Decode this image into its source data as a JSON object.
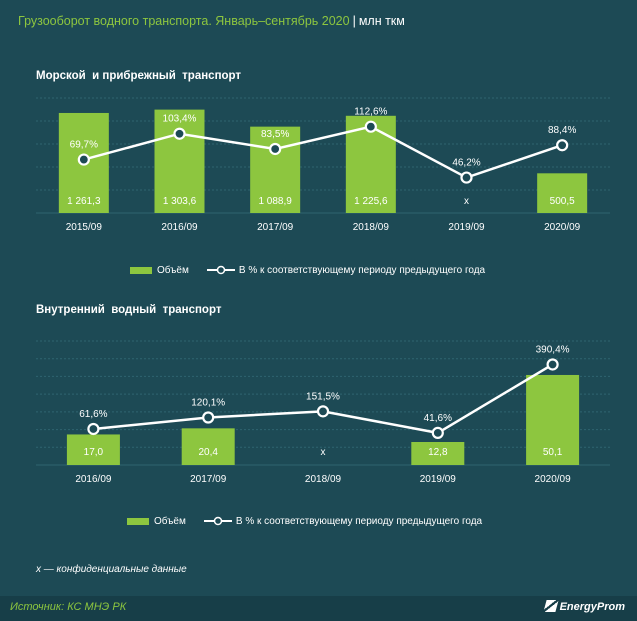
{
  "header": {
    "title": "Грузооборот водного транспорта. Январь–сентябрь 2020",
    "separator": "|",
    "unit": "млн ткм"
  },
  "legend": {
    "volume_label": "Объём",
    "percent_label": "В % к соответствующему периоду предыдущего года"
  },
  "footnote": "х — конфиденциальные данные",
  "source": "Источник: КС МНЭ РК",
  "brand": "EnergyProm",
  "colors": {
    "background": "#1d4a55",
    "bar": "#8dc63f",
    "line": "#ffffff",
    "grid": "#2f6470",
    "footer": "#173e48"
  },
  "chart_data": [
    {
      "type": "bar",
      "title": "Морской  и прибрежный  транспорт",
      "categories": [
        "2015/09",
        "2016/09",
        "2017/09",
        "2018/09",
        "2019/09",
        "2020/09"
      ],
      "bar_labels": [
        "1 261,3",
        "1 303,6",
        "1 088,9",
        "1 225,6",
        "х",
        "500,5"
      ],
      "line_labels": [
        "69,7%",
        "103,4%",
        "83,5%",
        "112,6%",
        "46,2%",
        "88,4%"
      ],
      "series": [
        {
          "name": "Объём",
          "type": "bar",
          "values": [
            1261.3,
            1303.6,
            1088.9,
            1225.6,
            null,
            500.5
          ]
        },
        {
          "name": "В % к соответствующему периоду предыдущего года",
          "type": "line",
          "values": [
            69.7,
            103.4,
            83.5,
            112.6,
            46.2,
            88.4
          ]
        }
      ],
      "ylim": [
        0,
        1450
      ],
      "y2lim": [
        0,
        150
      ],
      "grid": true,
      "legend": "bottom"
    },
    {
      "type": "bar",
      "title": "Внутренний  водный  транспорт",
      "categories": [
        "2016/09",
        "2017/09",
        "2018/09",
        "2019/09",
        "2020/09"
      ],
      "bar_labels": [
        "17,0",
        "20,4",
        "х",
        "12,8",
        "50,1"
      ],
      "line_labels": [
        "61,6%",
        "120,1%",
        "151,5%",
        "41,6%",
        "390,4%"
      ],
      "series": [
        {
          "name": "Объём",
          "type": "bar",
          "values": [
            17.0,
            20.4,
            null,
            12.8,
            50.1
          ]
        },
        {
          "name": "В % к соответствующему периоду предыдущего года",
          "type": "line",
          "values": [
            61.6,
            120.1,
            151.5,
            41.6,
            390.4
          ]
        }
      ],
      "ylim": [
        0,
        69
      ],
      "y2lim": [
        -122,
        510
      ],
      "grid": true,
      "legend": "bottom"
    }
  ]
}
